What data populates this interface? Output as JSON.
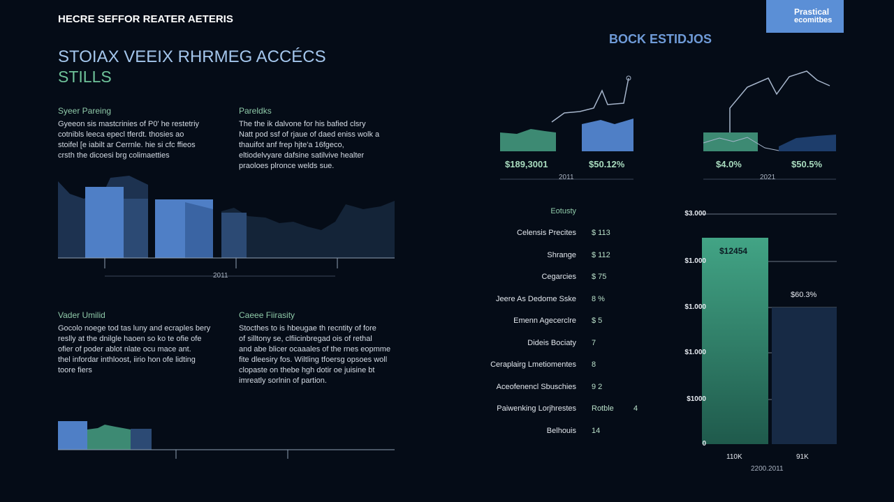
{
  "header": {
    "title": "HECRE SEFFOR REATER AETERIS",
    "logo": [
      "Prastical",
      "ecomitbes"
    ]
  },
  "main": {
    "title": "STOIAX VEEIX RHRMEG ACCÉCS",
    "subtitle": "STILLS",
    "chart_caption": "2011"
  },
  "sections": [
    {
      "heading": "Syeer Pareing",
      "lines": [
        "Gyeeon sis mastcrinies of P0' he restetriy",
        "cotnibls leeca epecl tferdt. thosies ao",
        "stoifel [e iabilt ar Cerrnle. hie si cfc ffieos",
        "crsth the dicoesi brg colimaetties"
      ]
    },
    {
      "heading": "Pareldks",
      "lines": [
        "The the ik dalvone for his bafied clsry",
        "Natt pod ssf of rjaue of daed eniss wolk a",
        "thauifot anf frep hjte'a 16fgeco,",
        "eltiodelvyare dafsine satilvive healter",
        "praoloes plronce welds sue."
      ]
    },
    {
      "heading": "Vader Umilid",
      "lines": [
        "Gocolo noege tod tas luny and ecraples bery",
        "reslly at the dnilgle haoen so ko te ofie ofe",
        "ofier of poder ablot nlate ocu mace ant.",
        "thel infordar inthloost, iirio hon ofe lidting",
        "toore fiers"
      ]
    },
    {
      "heading": "Caeee Fiirasity",
      "lines": [
        "Stocthes to is hbeugae th recntity of fore",
        "of silltony se, clfiicinbregad ois of rethal",
        "and abe blicer ocaaales of the rnes eopmme",
        "fite dleesiry fos. Wiltling tfoersg opsoes woll",
        "clopaste on thebe hgh dotir oe juisine bt",
        "imreatly sorlnin of partion."
      ]
    }
  ],
  "right": {
    "title": "BOCK ESTIDJOS",
    "panels": [
      {
        "stats": [
          "$189,3001",
          "$50.12%"
        ],
        "caption": "2011"
      },
      {
        "stats": [
          "$4.0%",
          "$50.5%"
        ],
        "caption": "2021"
      }
    ],
    "list": {
      "heading": "Eotusty",
      "rows": [
        [
          "Celensis Precites",
          "$ 113"
        ],
        [
          "Shrange",
          "$ 112"
        ],
        [
          "Cegarcies",
          "$ 75"
        ],
        [
          "Jeere As Dedome Sske",
          "8 %"
        ],
        [
          "Emenn Agecerclre",
          "$ 5"
        ],
        [
          "Dideis Bociaty",
          "7"
        ],
        [
          "Ceraplairg Lmetiomentes",
          "8"
        ],
        [
          "Aceofenencl Sbuschies",
          "9 2"
        ],
        [
          "Paiwenking Lorjhrestes",
          "Rotble",
          "4"
        ],
        [
          "Belhouis",
          "14"
        ]
      ]
    },
    "bars": {
      "y_labels": [
        "$3.000",
        "$1.000",
        "$1.000",
        "$1.000",
        "$1000",
        "0"
      ],
      "bar_labels": [
        "$12454",
        "$60.3%"
      ],
      "x_labels": [
        "110K",
        "91K"
      ],
      "caption": "2200.2011"
    }
  }
}
